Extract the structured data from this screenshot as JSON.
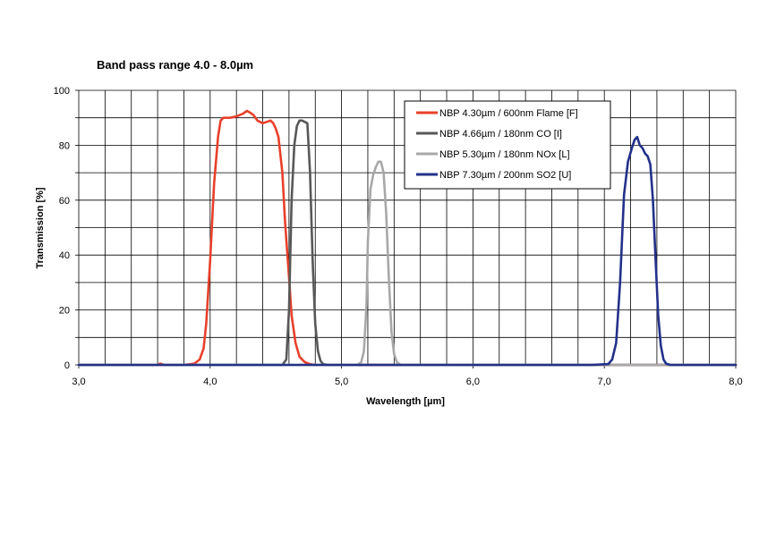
{
  "chart_data": {
    "type": "line",
    "title": "Band pass range 4.0 - 8.0µm",
    "xlabel": "Wavelength [µm]",
    "ylabel": "Transmission [%]",
    "xlim": [
      3.0,
      8.0
    ],
    "ylim": [
      0,
      100
    ],
    "x_ticks": [
      3.0,
      3.2,
      3.4,
      3.6,
      3.8,
      4.0,
      4.2,
      4.4,
      4.6,
      4.8,
      5.0,
      5.2,
      5.4,
      5.6,
      5.8,
      6.0,
      6.2,
      6.4,
      6.6,
      6.8,
      7.0,
      7.2,
      7.4,
      7.6,
      7.8,
      8.0
    ],
    "x_tick_labels": [
      "3,0",
      "",
      "",
      "",
      "",
      "4,0",
      "",
      "",
      "",
      "",
      "5,0",
      "",
      "",
      "",
      "",
      "6,0",
      "",
      "",
      "",
      "",
      "7,0",
      "",
      "",
      "",
      "",
      "8,0"
    ],
    "y_ticks": [
      0,
      10,
      20,
      30,
      40,
      50,
      60,
      70,
      80,
      90,
      100
    ],
    "y_tick_labels": [
      "0",
      "",
      "20",
      "",
      "40",
      "",
      "60",
      "",
      "80",
      "",
      "100"
    ],
    "grid": true,
    "legend_position": "top-right",
    "series": [
      {
        "name": "NBP 4.30µm / 600nm Flame [F]",
        "color": "#e8402a",
        "x": [
          3.0,
          3.6,
          3.62,
          3.65,
          3.8,
          3.88,
          3.92,
          3.95,
          3.97,
          4.0,
          4.03,
          4.06,
          4.08,
          4.1,
          4.15,
          4.2,
          4.25,
          4.28,
          4.3,
          4.33,
          4.36,
          4.4,
          4.43,
          4.46,
          4.48,
          4.5,
          4.52,
          4.55,
          4.57,
          4.6,
          4.62,
          4.65,
          4.68,
          4.72,
          4.76,
          4.8,
          4.85,
          5.0,
          8.0
        ],
        "y": [
          0,
          0,
          0.5,
          0,
          0,
          0.5,
          2,
          6,
          15,
          38,
          66,
          83,
          89,
          90,
          90,
          90.5,
          91.5,
          92.5,
          92,
          91,
          89,
          88,
          88.5,
          89,
          88,
          86,
          83,
          70,
          52,
          32,
          18,
          8,
          3,
          1,
          0.3,
          0,
          0,
          0,
          0
        ]
      },
      {
        "name": "NBP 4.66µm / 180nm CO [I]",
        "color": "#585858",
        "x": [
          3.0,
          4.55,
          4.58,
          4.6,
          4.62,
          4.64,
          4.66,
          4.68,
          4.7,
          4.72,
          4.74,
          4.76,
          4.78,
          4.8,
          4.82,
          4.84,
          4.86,
          4.9,
          8.0
        ],
        "y": [
          0,
          0,
          2,
          20,
          60,
          80,
          87,
          89,
          89,
          88.5,
          88,
          70,
          38,
          15,
          5,
          1.5,
          0.3,
          0,
          0
        ]
      },
      {
        "name": "NBP 5.30µm / 180nm NOx [L]",
        "color": "#a8a8a8",
        "x": [
          3.0,
          5.12,
          5.15,
          5.17,
          5.19,
          5.2,
          5.22,
          5.24,
          5.26,
          5.28,
          5.3,
          5.32,
          5.34,
          5.36,
          5.38,
          5.4,
          5.42,
          5.45,
          8.0
        ],
        "y": [
          0,
          0,
          1,
          5,
          22,
          45,
          64,
          69,
          72,
          74,
          74,
          70,
          55,
          32,
          12,
          4,
          1,
          0,
          0
        ]
      },
      {
        "name": "NBP 7.30µm / 200nm SO2 [U]",
        "color": "#23318a",
        "x": [
          3.0,
          6.7,
          6.9,
          7.03,
          7.06,
          7.09,
          7.12,
          7.15,
          7.18,
          7.21,
          7.23,
          7.25,
          7.27,
          7.29,
          7.31,
          7.33,
          7.35,
          7.37,
          7.39,
          7.41,
          7.43,
          7.45,
          7.47,
          7.5,
          7.55,
          7.6,
          8.0
        ],
        "y": [
          0,
          0,
          0,
          0.3,
          2,
          8,
          30,
          62,
          74,
          79,
          82,
          83,
          80,
          79,
          77,
          76,
          73,
          60,
          38,
          18,
          7,
          2,
          0.5,
          0,
          0,
          0,
          0
        ]
      }
    ]
  }
}
